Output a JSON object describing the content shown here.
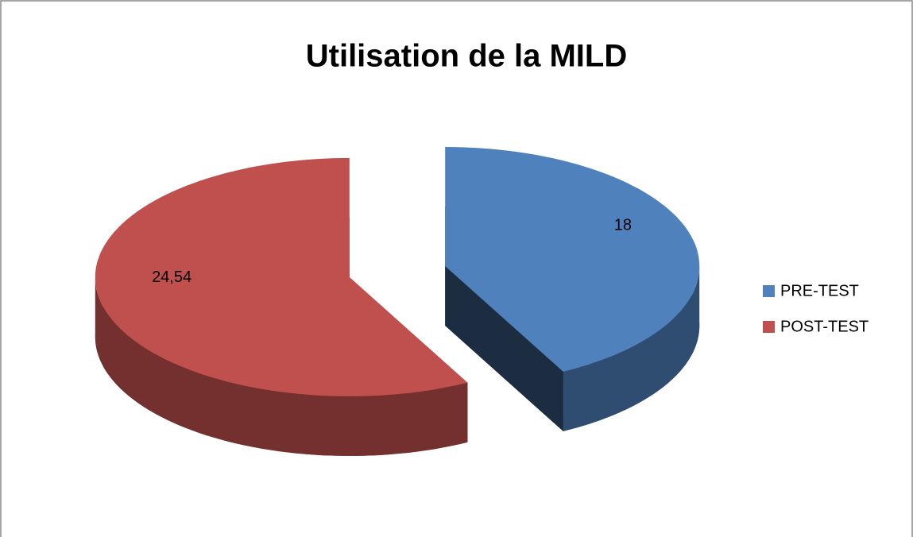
{
  "chart_data": {
    "type": "pie",
    "title": "Utilisation de la MILD",
    "categories": [
      "PRE-TEST",
      "POST-TEST"
    ],
    "values": [
      18,
      24.54
    ],
    "value_labels": [
      "18",
      "24,54"
    ],
    "colors": [
      "#4f81bd",
      "#c0504d"
    ],
    "legend": "right"
  }
}
